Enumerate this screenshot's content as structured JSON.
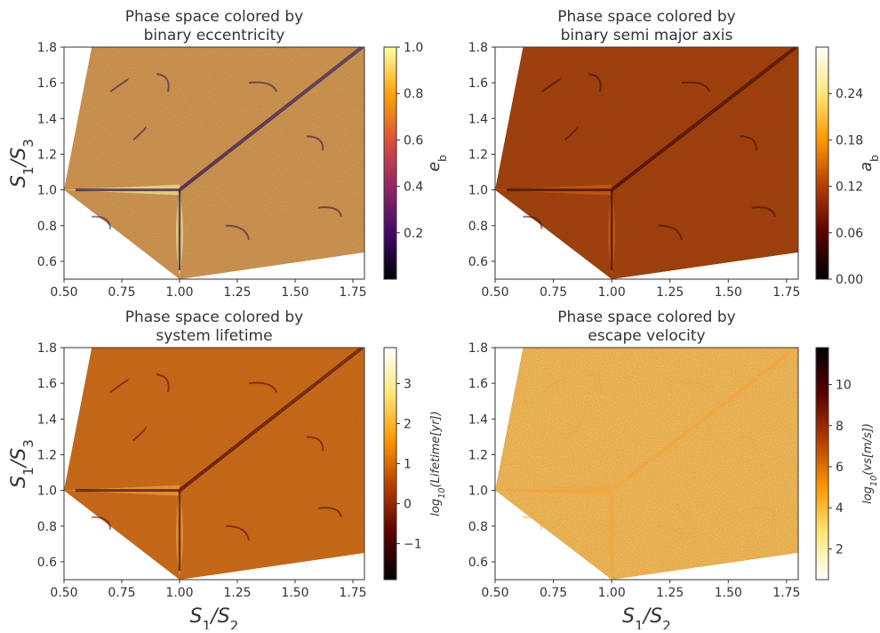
{
  "chart_data": [
    {
      "type": "heatmap",
      "title": [
        "Phase space colored by",
        "binary eccentricity"
      ],
      "xlabel": "",
      "ylabel": "S1/S3",
      "xlim": [
        0.5,
        1.8
      ],
      "ylim": [
        0.5,
        1.8
      ],
      "xticks": [
        "0.50",
        "0.75",
        "1.00",
        "1.25",
        "1.50",
        "1.75"
      ],
      "yticks": [
        "0.6",
        "0.8",
        "1.0",
        "1.2",
        "1.4",
        "1.6",
        "1.8"
      ],
      "colorbar": {
        "label": "e_b",
        "colormap": "inferno",
        "range": [
          0.0,
          1.0
        ],
        "ticks": [
          "0.2",
          "0.4",
          "0.6",
          "0.8",
          "1.0"
        ],
        "colors": [
          "#000004",
          "#420a68",
          "#932667",
          "#dd513a",
          "#fca50a",
          "#fcffa4"
        ]
      },
      "dominant_color": "#d39a56",
      "feature_colors": [
        "#2b0f4e",
        "#f2c34a",
        "#fcffa4"
      ]
    },
    {
      "type": "heatmap",
      "title": [
        "Phase space colored by",
        "binary semi major axis"
      ],
      "xlabel": "",
      "ylabel": "",
      "xlim": [
        0.5,
        1.8
      ],
      "ylim": [
        0.5,
        1.8
      ],
      "xticks": [
        "0.50",
        "0.75",
        "1.00",
        "1.25",
        "1.50",
        "1.75"
      ],
      "yticks": [
        "0.6",
        "0.8",
        "1.0",
        "1.2",
        "1.4",
        "1.6",
        "1.8"
      ],
      "colorbar": {
        "label": "a_b",
        "colormap": "afmhot",
        "range": [
          0.0,
          0.3
        ],
        "ticks": [
          "0.00",
          "0.06",
          "0.12",
          "0.18",
          "0.24"
        ],
        "colors": [
          "#000000",
          "#5a0000",
          "#b43c00",
          "#ff9600",
          "#ffe678",
          "#ffffff"
        ]
      },
      "dominant_color": "#a03a08",
      "feature_colors": [
        "#3a0800",
        "#d86a18"
      ]
    },
    {
      "type": "heatmap",
      "title": [
        "Phase space colored by",
        "system lifetime"
      ],
      "xlabel": "S1/S2",
      "ylabel": "S1/S3",
      "xlim": [
        0.5,
        1.8
      ],
      "ylim": [
        0.5,
        1.8
      ],
      "xticks": [
        "0.50",
        "0.75",
        "1.00",
        "1.25",
        "1.50",
        "1.75"
      ],
      "yticks": [
        "0.6",
        "0.8",
        "1.0",
        "1.2",
        "1.4",
        "1.6",
        "1.8"
      ],
      "colorbar": {
        "label": "log10(Lifetime[yr])",
        "colormap": "afmhot",
        "range": [
          -1.9,
          3.9
        ],
        "ticks": [
          "−1",
          "0",
          "1",
          "2",
          "3"
        ],
        "colors": [
          "#000000",
          "#5a0000",
          "#b43c00",
          "#ff9600",
          "#ffe678",
          "#ffffff"
        ]
      },
      "dominant_color": "#cf6a16",
      "feature_colors": [
        "#4a0a00",
        "#f7b04a"
      ]
    },
    {
      "type": "heatmap",
      "title": [
        "Phase space colored by",
        "escape velocity"
      ],
      "xlabel": "S1/S2",
      "ylabel": "",
      "xlim": [
        0.5,
        1.8
      ],
      "ylim": [
        0.5,
        1.8
      ],
      "xticks": [
        "0.50",
        "0.75",
        "1.00",
        "1.25",
        "1.50",
        "1.75"
      ],
      "yticks": [
        "0.6",
        "0.8",
        "1.0",
        "1.2",
        "1.4",
        "1.6",
        "1.8"
      ],
      "colorbar": {
        "label": "log10(vs[m/s])",
        "colormap": "afmhot_r",
        "range": [
          0.5,
          11.8
        ],
        "ticks": [
          "2",
          "4",
          "6",
          "8",
          "10"
        ],
        "colors": [
          "#ffffff",
          "#ffe678",
          "#ff9600",
          "#b43c00",
          "#5a0000",
          "#000000"
        ]
      },
      "dominant_color": "#fbc25c",
      "feature_colors": [
        "#f2a640"
      ]
    }
  ]
}
